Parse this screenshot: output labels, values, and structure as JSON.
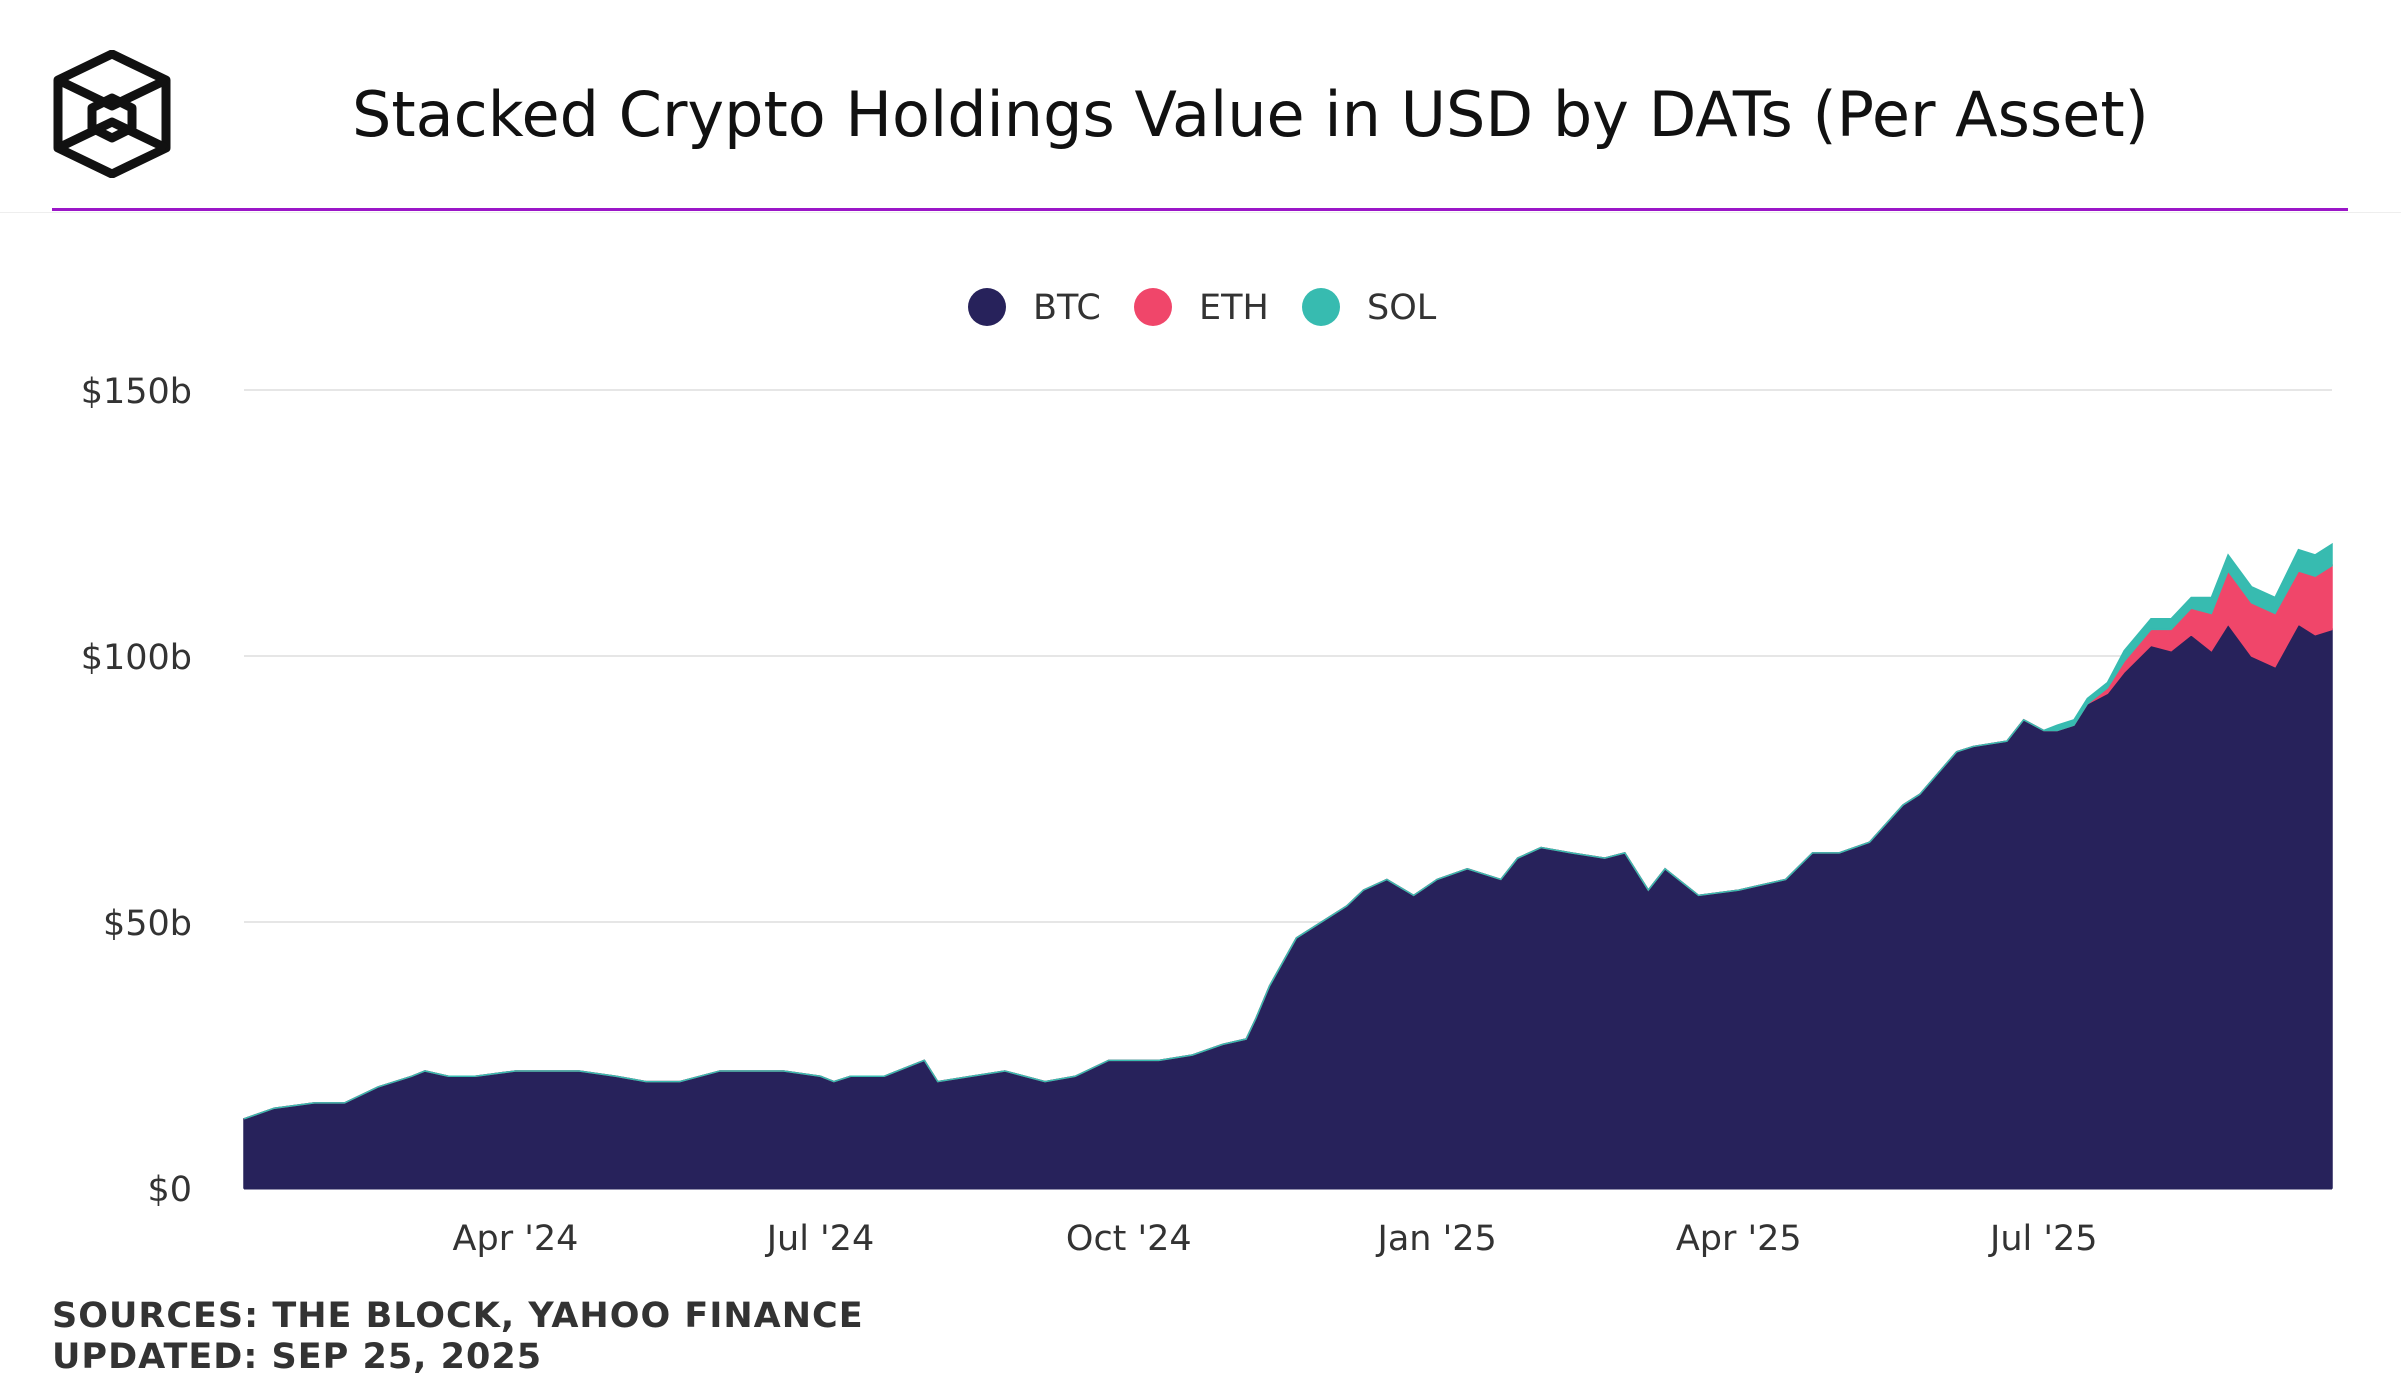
{
  "header": {
    "title": "Stacked Crypto Holdings Value in USD by DATs (Per Asset)",
    "logo_icon": "the-block-cube-icon"
  },
  "footer": {
    "sources": "SOURCES: THE BLOCK, YAHOO FINANCE",
    "updated": "UPDATED: SEP 25, 2025"
  },
  "colors": {
    "accent_rule": "#9b16c8",
    "BTC": "#27225b",
    "ETH": "#f0466a",
    "SOL": "#37bbb0"
  },
  "chart_data": {
    "type": "area",
    "stacked": true,
    "legend_position": "top-center",
    "grid": true,
    "x_type": "date",
    "xlim": [
      "2024-01-11",
      "2025-09-25"
    ],
    "ylim": [
      0,
      150
    ],
    "yticks": [
      0,
      50,
      100,
      150
    ],
    "ytick_labels": [
      "$0",
      "$50b",
      "$100b",
      "$150b"
    ],
    "xticks": [
      "2024-04-01",
      "2024-07-01",
      "2024-10-01",
      "2025-01-01",
      "2025-04-01",
      "2025-07-01"
    ],
    "xtick_labels": [
      "Apr '24",
      "Jul '24",
      "Oct '24",
      "Jan '25",
      "Apr '25",
      "Jul '25"
    ],
    "x": [
      "2024-01-11",
      "2024-01-20",
      "2024-02-01",
      "2024-02-10",
      "2024-02-20",
      "2024-03-01",
      "2024-03-05",
      "2024-03-12",
      "2024-03-20",
      "2024-04-01",
      "2024-04-10",
      "2024-04-20",
      "2024-05-01",
      "2024-05-10",
      "2024-05-20",
      "2024-06-01",
      "2024-06-10",
      "2024-06-20",
      "2024-07-01",
      "2024-07-05",
      "2024-07-10",
      "2024-07-20",
      "2024-08-01",
      "2024-08-05",
      "2024-08-15",
      "2024-08-25",
      "2024-09-06",
      "2024-09-15",
      "2024-09-25",
      "2024-10-01",
      "2024-10-10",
      "2024-10-20",
      "2024-10-29",
      "2024-11-05",
      "2024-11-08",
      "2024-11-12",
      "2024-11-20",
      "2024-11-25",
      "2024-12-05",
      "2024-12-10",
      "2024-12-17",
      "2024-12-25",
      "2025-01-01",
      "2025-01-10",
      "2025-01-20",
      "2025-01-25",
      "2025-02-01",
      "2025-02-10",
      "2025-02-20",
      "2025-02-26",
      "2025-03-05",
      "2025-03-10",
      "2025-03-20",
      "2025-04-01",
      "2025-04-08",
      "2025-04-15",
      "2025-04-23",
      "2025-05-01",
      "2025-05-10",
      "2025-05-20",
      "2025-05-25",
      "2025-06-05",
      "2025-06-10",
      "2025-06-20",
      "2025-06-25",
      "2025-07-01",
      "2025-07-05",
      "2025-07-10",
      "2025-07-14",
      "2025-07-20",
      "2025-07-25",
      "2025-08-02",
      "2025-08-08",
      "2025-08-14",
      "2025-08-20",
      "2025-08-25",
      "2025-09-01",
      "2025-09-08",
      "2025-09-15",
      "2025-09-20",
      "2025-09-25"
    ],
    "series": [
      {
        "name": "BTC",
        "values": [
          13,
          15,
          16,
          16,
          19,
          21,
          22,
          21,
          21,
          22,
          22,
          22,
          21,
          20,
          20,
          22,
          22,
          22,
          21,
          20,
          21,
          21,
          24,
          20,
          21,
          22,
          20,
          21,
          24,
          24,
          24,
          25,
          27,
          28,
          32,
          38,
          47,
          49,
          53,
          56,
          58,
          55,
          58,
          60,
          58,
          62,
          64,
          63,
          62,
          63,
          56,
          60,
          55,
          56,
          57,
          58,
          63,
          63,
          65,
          72,
          74,
          82,
          83,
          84,
          88,
          86,
          86,
          87,
          91,
          93,
          97,
          102,
          101,
          104,
          101,
          106,
          100,
          98,
          106,
          104,
          105
        ]
      },
      {
        "name": "ETH",
        "values": [
          0,
          0,
          0,
          0,
          0,
          0,
          0,
          0,
          0,
          0,
          0,
          0,
          0,
          0,
          0,
          0,
          0,
          0,
          0,
          0,
          0,
          0,
          0,
          0,
          0,
          0,
          0,
          0,
          0,
          0,
          0,
          0,
          0,
          0,
          0,
          0,
          0,
          0,
          0,
          0,
          0,
          0,
          0,
          0,
          0,
          0,
          0,
          0,
          0,
          0,
          0,
          0,
          0,
          0,
          0,
          0,
          0,
          0,
          0,
          0,
          0,
          0,
          0,
          0,
          0,
          0,
          0,
          0,
          0,
          1,
          2,
          3,
          4,
          5,
          7,
          10,
          10,
          10,
          10,
          11,
          12
        ]
      },
      {
        "name": "SOL",
        "values": [
          0,
          0,
          0,
          0,
          0,
          0,
          0,
          0,
          0,
          0,
          0,
          0,
          0,
          0,
          0,
          0,
          0,
          0,
          0,
          0,
          0,
          0,
          0,
          0,
          0,
          0,
          0,
          0,
          0,
          0,
          0,
          0,
          0,
          0,
          0,
          0,
          0,
          0,
          0,
          0,
          0,
          0,
          0,
          0,
          0,
          0,
          0,
          0,
          0,
          0,
          0,
          0,
          0,
          0,
          0,
          0,
          0,
          0,
          0,
          0,
          0,
          0,
          0,
          0,
          0,
          0,
          1,
          1,
          1,
          1,
          2,
          2,
          2,
          2,
          3,
          3,
          3,
          3,
          4,
          4,
          4
        ]
      }
    ]
  }
}
